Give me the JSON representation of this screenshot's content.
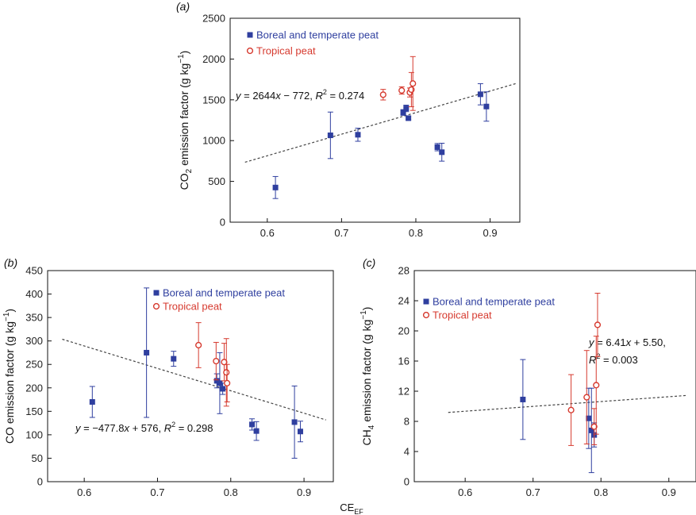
{
  "colors": {
    "boreal": "#2f3f9f",
    "tropical": "#d63a2f",
    "fit": "#444444",
    "axis": "#111111"
  },
  "shared_xlabel": {
    "main": "CE",
    "sub": "EF"
  },
  "chart_data": [
    {
      "id": "a",
      "type": "scatter",
      "panel_label": "(a)",
      "xlim": [
        0.55,
        0.94
      ],
      "ylim": [
        0,
        2500
      ],
      "xticks": [
        0.6,
        0.7,
        0.8,
        0.9
      ],
      "yticks": [
        0,
        500,
        1000,
        1500,
        2000,
        2500
      ],
      "xtick_labels": [
        "0.6",
        "0.7",
        "0.8",
        "0.9"
      ],
      "ytick_labels": [
        "0",
        "500",
        "1000",
        "1500",
        "2000",
        "2500"
      ],
      "ylabel": {
        "pre": "CO",
        "sub": "2",
        "post": " emission factor (g kg",
        "sup": "−1",
        "end": ")"
      },
      "legend": {
        "position": "top-center",
        "entries": [
          {
            "label": "Boreal and temperate peat",
            "series": "boreal"
          },
          {
            "label": "Tropical peat",
            "series": "tropical"
          }
        ]
      },
      "fit": {
        "slope": 2644,
        "intercept": -772,
        "x_range": [
          0.57,
          0.935
        ],
        "equation": {
          "a": "y = 2644x − 772, ",
          "b": "R",
          "c": "2",
          "d": " = 0.274"
        }
      },
      "series": [
        {
          "name": "Boreal and temperate peat",
          "key": "boreal",
          "marker": "square",
          "points": [
            {
              "x": 0.611,
              "y": 425,
              "err": 135
            },
            {
              "x": 0.685,
              "y": 1065,
              "err": 285
            },
            {
              "x": 0.722,
              "y": 1072,
              "err": 80
            },
            {
              "x": 0.783,
              "y": 1345,
              "err": 35
            },
            {
              "x": 0.787,
              "y": 1395,
              "err": 40
            },
            {
              "x": 0.79,
              "y": 1275,
              "err": 20
            },
            {
              "x": 0.829,
              "y": 920,
              "err": 45
            },
            {
              "x": 0.835,
              "y": 858,
              "err": 110
            },
            {
              "x": 0.887,
              "y": 1568,
              "err": 130
            },
            {
              "x": 0.895,
              "y": 1418,
              "err": 180
            }
          ]
        },
        {
          "name": "Tropical peat",
          "key": "tropical",
          "marker": "circle",
          "points": [
            {
              "x": 0.756,
              "y": 1563,
              "err": 65
            },
            {
              "x": 0.781,
              "y": 1615,
              "err": 45
            },
            {
              "x": 0.792,
              "y": 1590,
              "err": 55
            },
            {
              "x": 0.794,
              "y": 1625,
              "err": 210
            },
            {
              "x": 0.796,
              "y": 1700,
              "err": 330
            }
          ]
        }
      ]
    },
    {
      "id": "b",
      "type": "scatter",
      "panel_label": "(b)",
      "xlim": [
        0.55,
        0.94
      ],
      "ylim": [
        0,
        450
      ],
      "xticks": [
        0.6,
        0.7,
        0.8,
        0.9
      ],
      "yticks": [
        0,
        50,
        100,
        150,
        200,
        250,
        300,
        350,
        400,
        450
      ],
      "xtick_labels": [
        "0.6",
        "0.7",
        "0.8",
        "0.9"
      ],
      "ytick_labels": [
        "0",
        "50",
        "100",
        "150",
        "200",
        "250",
        "300",
        "350",
        "400",
        "450"
      ],
      "ylabel": {
        "pre": "CO emission factor (g kg",
        "sub": "",
        "post": "",
        "sup": "−1",
        "end": ")"
      },
      "legend": {
        "position": "top-right",
        "entries": [
          {
            "label": "Boreal and temperate peat",
            "series": "boreal"
          },
          {
            "label": "Tropical peat",
            "series": "tropical"
          }
        ]
      },
      "fit": {
        "slope": -477.8,
        "intercept": 576,
        "x_range": [
          0.57,
          0.93
        ],
        "equation": {
          "a": "y = −477.8x + 576, ",
          "b": "R",
          "c": "2",
          "d": " = 0.298"
        }
      },
      "series": [
        {
          "name": "Boreal and temperate peat",
          "key": "boreal",
          "marker": "square",
          "points": [
            {
              "x": 0.611,
              "y": 170,
              "err": 33
            },
            {
              "x": 0.685,
              "y": 275,
              "err": 138
            },
            {
              "x": 0.722,
              "y": 262,
              "err": 16
            },
            {
              "x": 0.781,
              "y": 215,
              "err": 15
            },
            {
              "x": 0.785,
              "y": 210,
              "err": 65
            },
            {
              "x": 0.789,
              "y": 198,
              "err": 12
            },
            {
              "x": 0.829,
              "y": 122,
              "err": 12
            },
            {
              "x": 0.835,
              "y": 108,
              "err": 20
            },
            {
              "x": 0.887,
              "y": 127,
              "err": 77
            },
            {
              "x": 0.895,
              "y": 107,
              "err": 22
            }
          ]
        },
        {
          "name": "Tropical peat",
          "key": "tropical",
          "marker": "circle",
          "points": [
            {
              "x": 0.756,
              "y": 291,
              "err": 48
            },
            {
              "x": 0.78,
              "y": 257,
              "err": 40
            },
            {
              "x": 0.791,
              "y": 255,
              "err": 40
            },
            {
              "x": 0.794,
              "y": 233,
              "err": 72
            },
            {
              "x": 0.795,
              "y": 210,
              "err": 40
            }
          ]
        }
      ]
    },
    {
      "id": "c",
      "type": "scatter",
      "panel_label": "(c)",
      "xlim": [
        0.525,
        0.94
      ],
      "ylim": [
        0,
        28
      ],
      "xticks": [
        0.6,
        0.7,
        0.8,
        0.9
      ],
      "yticks": [
        0,
        4,
        8,
        12,
        16,
        20,
        24,
        28
      ],
      "xtick_labels": [
        "0.6",
        "0.7",
        "0.8",
        "0.9"
      ],
      "ytick_labels": [
        "0",
        "4",
        "8",
        "12",
        "16",
        "20",
        "24",
        "28"
      ],
      "ylabel": {
        "pre": "CH",
        "sub": "4",
        "post": " emission factor (g kg",
        "sup": "−1",
        "end": ")"
      },
      "legend": {
        "position": "top-left",
        "entries": [
          {
            "label": "Boreal and temperate peat",
            "series": "boreal"
          },
          {
            "label": "Tropical peat",
            "series": "tropical"
          }
        ]
      },
      "fit": {
        "slope": 6.41,
        "intercept": 5.5,
        "x_range": [
          0.575,
          0.925
        ],
        "equation_lines": [
          {
            "a": "y = 6.41x + 5.50,",
            "b": "",
            "c": "",
            "d": ""
          },
          {
            "a": "",
            "b": "R",
            "c": "2",
            "d": " = 0.003"
          }
        ]
      },
      "series": [
        {
          "name": "Boreal and temperate peat",
          "key": "boreal",
          "marker": "square",
          "points": [
            {
              "x": 0.685,
              "y": 10.9,
              "err": 5.3
            },
            {
              "x": 0.782,
              "y": 8.4,
              "err": 4.0
            },
            {
              "x": 0.786,
              "y": 6.8,
              "err": 5.6
            },
            {
              "x": 0.79,
              "y": 6.2,
              "err": 1.6
            }
          ]
        },
        {
          "name": "Tropical peat",
          "key": "tropical",
          "marker": "circle",
          "points": [
            {
              "x": 0.756,
              "y": 9.5,
              "err": 4.7
            },
            {
              "x": 0.779,
              "y": 11.2,
              "err": 6.2
            },
            {
              "x": 0.79,
              "y": 7.3,
              "err": 2.4
            },
            {
              "x": 0.793,
              "y": 12.8,
              "err": 6.5
            },
            {
              "x": 0.795,
              "y": 20.8,
              "err": 4.2
            }
          ]
        }
      ]
    }
  ]
}
